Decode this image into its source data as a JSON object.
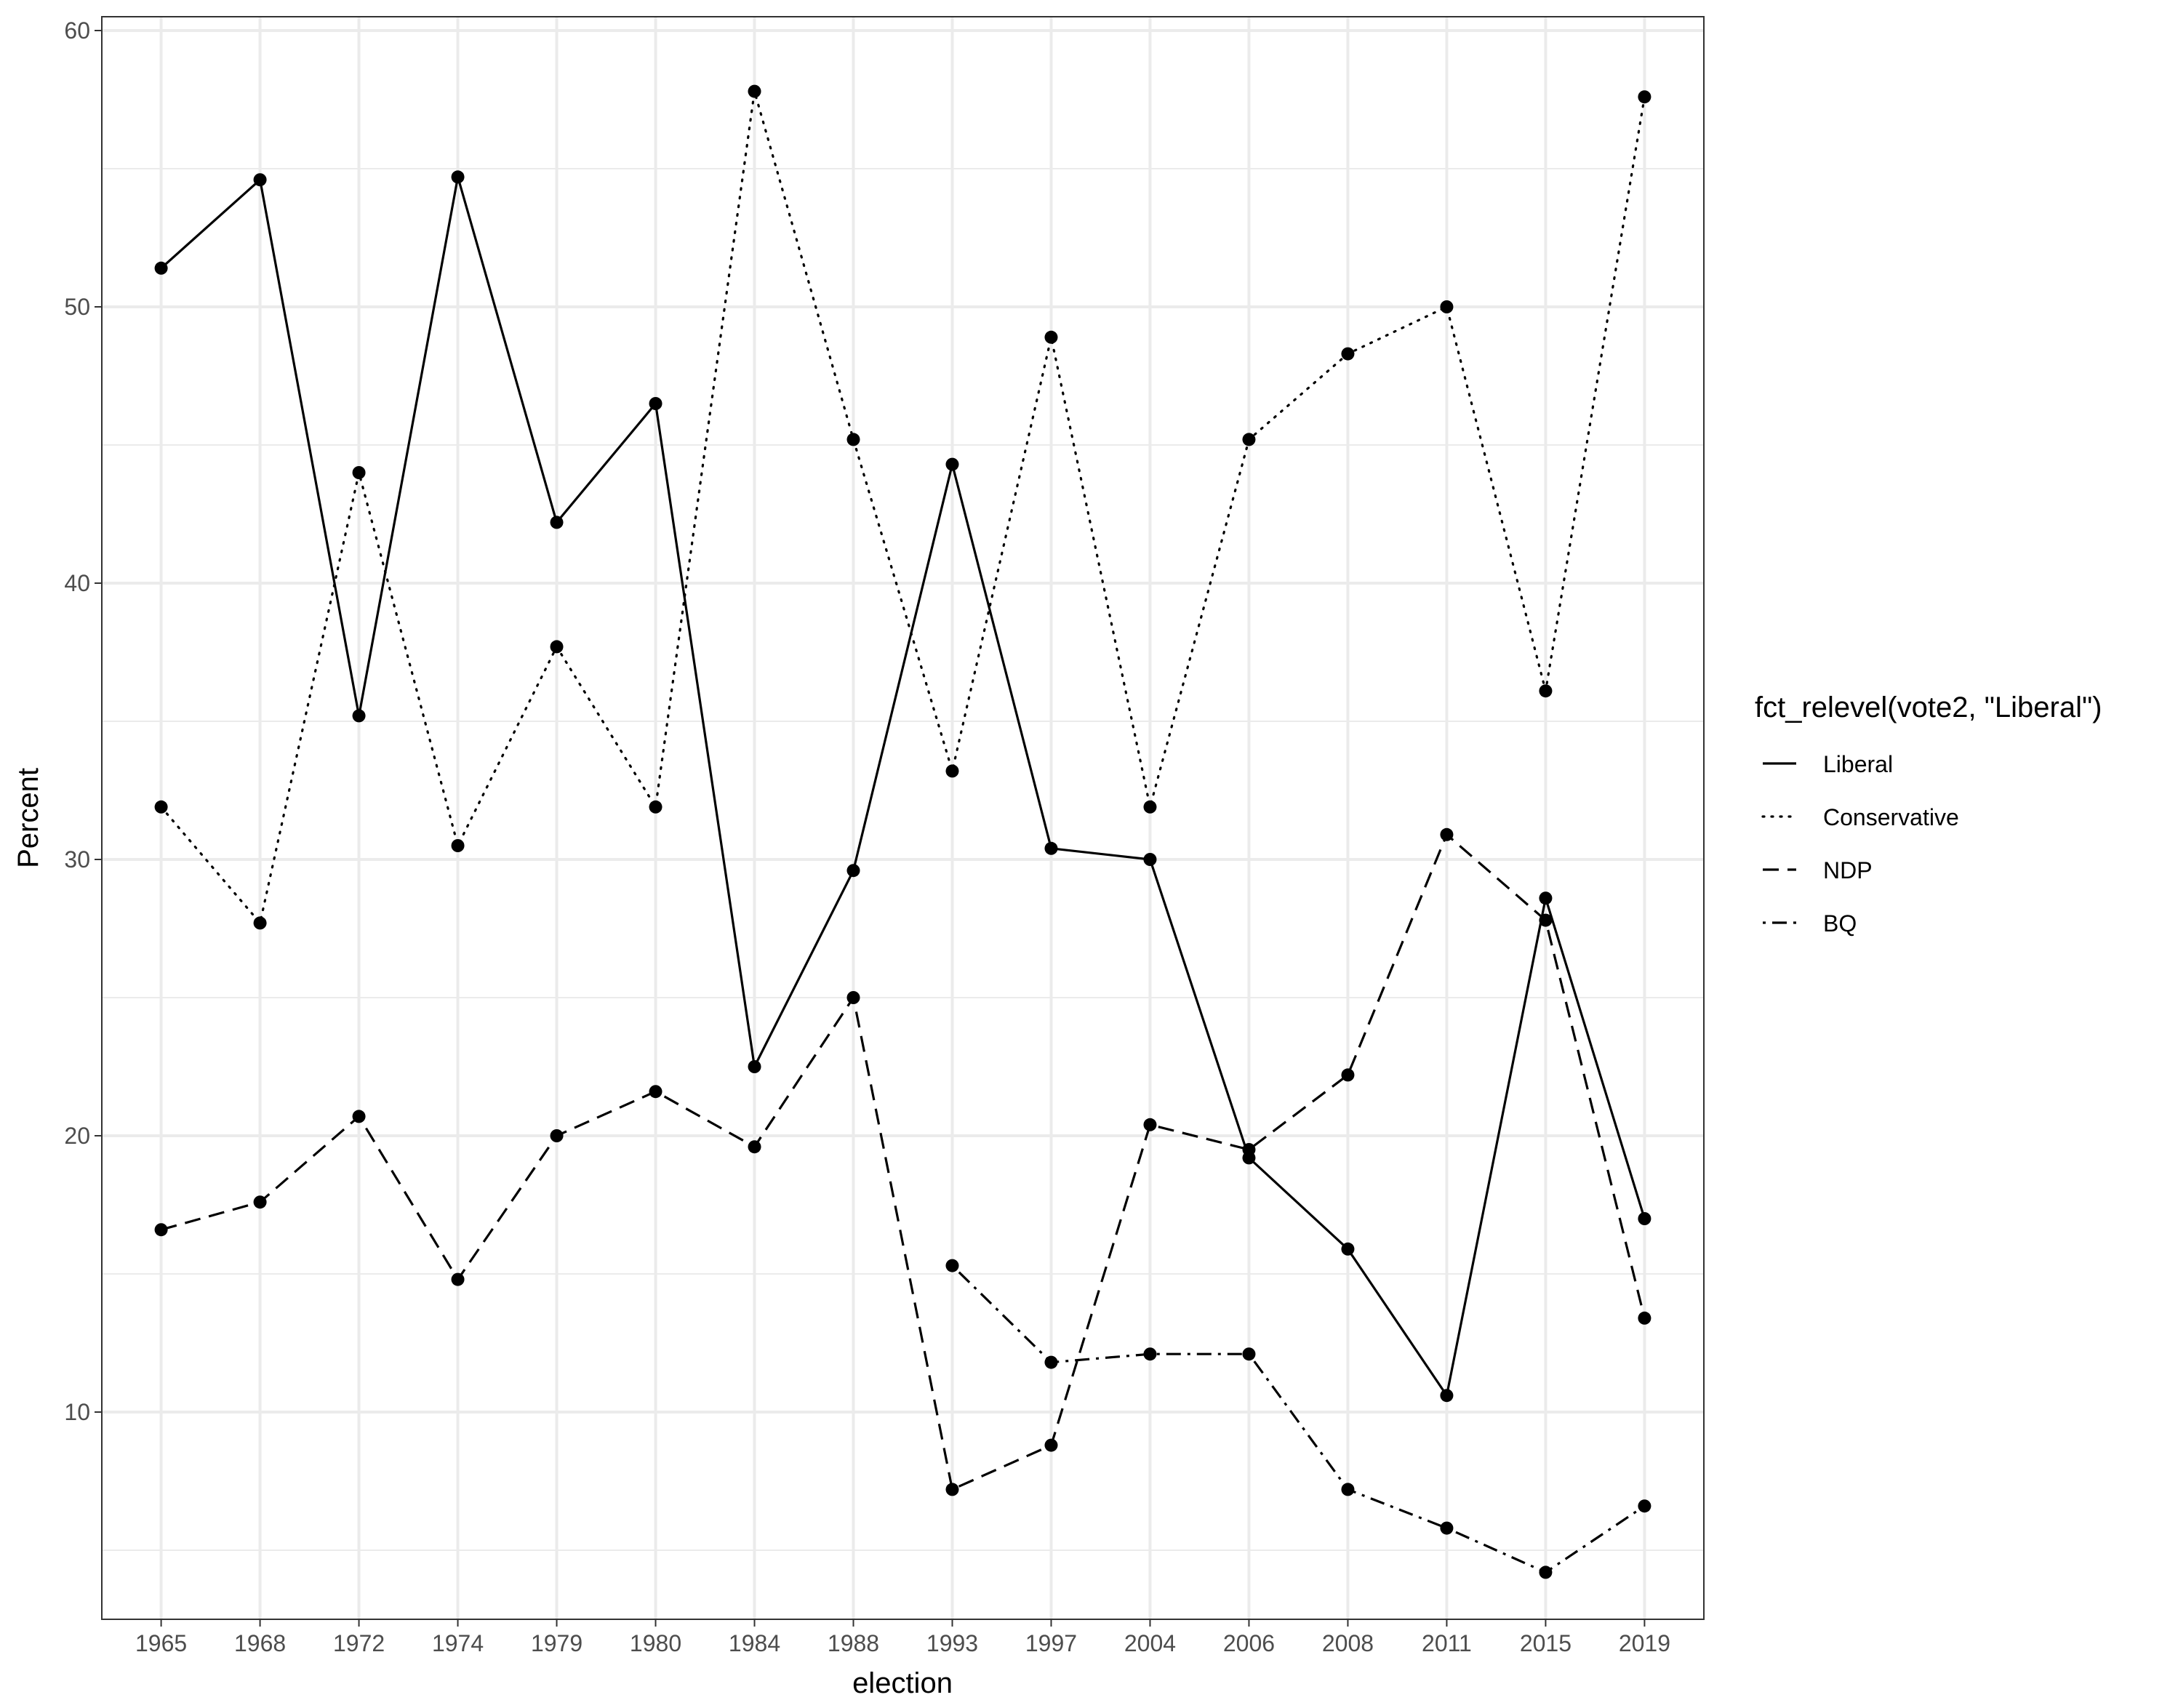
{
  "chart_data": {
    "type": "line",
    "xlabel": "election",
    "ylabel": "Percent",
    "categories": [
      "1965",
      "1968",
      "1972",
      "1974",
      "1979",
      "1980",
      "1984",
      "1988",
      "1993",
      "1997",
      "2004",
      "2006",
      "2008",
      "2011",
      "2015",
      "2019"
    ],
    "ylim": [
      2.5,
      60.5
    ],
    "yticks": [
      10,
      20,
      30,
      40,
      50,
      60
    ],
    "grid": true,
    "legend": {
      "title": "fct_relevel(vote2, \"Liberal\")",
      "placement": "right"
    },
    "series": [
      {
        "name": "Liberal",
        "linetype": "solid",
        "values": [
          51.4,
          54.6,
          35.2,
          54.7,
          42.2,
          46.5,
          22.5,
          29.6,
          44.3,
          30.4,
          30.0,
          19.2,
          15.9,
          10.6,
          28.6,
          17.0
        ]
      },
      {
        "name": "Conservative",
        "linetype": "dotted",
        "values": [
          31.9,
          27.7,
          44.0,
          30.5,
          37.7,
          31.9,
          57.8,
          45.2,
          33.2,
          48.9,
          31.9,
          45.2,
          48.3,
          50.0,
          36.1,
          57.6
        ]
      },
      {
        "name": "NDP",
        "linetype": "dashed",
        "values": [
          16.6,
          17.6,
          20.7,
          14.8,
          20.0,
          21.6,
          19.6,
          25.0,
          7.2,
          8.8,
          20.4,
          19.5,
          22.2,
          30.9,
          27.8,
          13.4
        ]
      },
      {
        "name": "BQ",
        "linetype": "dotdash",
        "values": [
          null,
          null,
          null,
          null,
          null,
          null,
          null,
          null,
          15.3,
          11.8,
          12.1,
          12.1,
          7.2,
          5.8,
          4.2,
          6.6
        ]
      }
    ],
    "colors": {
      "line": "#000000",
      "point": "#000000",
      "grid": "#ebebeb",
      "border": "#333333"
    }
  }
}
